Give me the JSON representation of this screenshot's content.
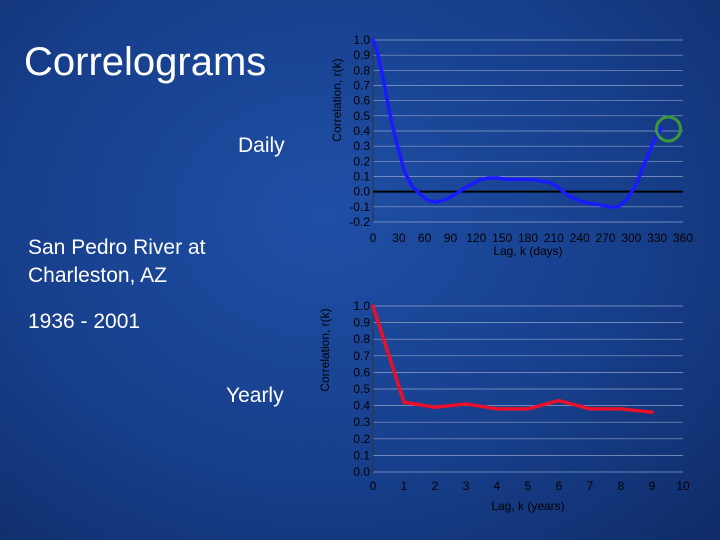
{
  "slide": {
    "title": "Correlograms",
    "daily_label": "Daily",
    "yearly_label": "Yearly",
    "river_line1": "San Pedro River at",
    "river_line2": "Charleston, AZ",
    "years": "1936 - 2001"
  },
  "colors": {
    "daily_series": "#1a1aff",
    "yearly_series": "#e8102a",
    "highlight_circle": "#3a9a3a",
    "axis_text": "#000000"
  },
  "chart_data": [
    {
      "type": "line",
      "ylabel": "Correlation, r(k)",
      "xlabel": "Lag, k (days)",
      "ylim": [
        -0.2,
        1.0
      ],
      "xlim": [
        0,
        360
      ],
      "y_ticks": [
        "1.0",
        "0.9",
        "0.8",
        "0.7",
        "0.6",
        "0.5",
        "0.4",
        "0.3",
        "0.2",
        "0.1",
        "0.0",
        "-0.1",
        "-0.2"
      ],
      "x_ticks": [
        "0",
        "30",
        "60",
        "90",
        "120",
        "150",
        "180",
        "210",
        "240",
        "270",
        "300",
        "330",
        "360"
      ],
      "zero_line": true,
      "grid": true,
      "series": [
        {
          "x": [
            0,
            6,
            12,
            18,
            24,
            30,
            36,
            45,
            55,
            65,
            75,
            85,
            95,
            105,
            115,
            125,
            135,
            145,
            155,
            165,
            175,
            185,
            195,
            205,
            215,
            225,
            235,
            245,
            255,
            265,
            275,
            285,
            295,
            305,
            315,
            325,
            335
          ],
          "y": [
            1.0,
            0.9,
            0.74,
            0.56,
            0.4,
            0.27,
            0.14,
            0.04,
            -0.02,
            -0.06,
            -0.07,
            -0.05,
            -0.02,
            0.02,
            0.05,
            0.08,
            0.09,
            0.09,
            0.08,
            0.08,
            0.08,
            0.08,
            0.07,
            0.06,
            0.03,
            -0.02,
            -0.05,
            -0.07,
            -0.08,
            -0.09,
            -0.1,
            -0.1,
            -0.05,
            0.04,
            0.18,
            0.32,
            0.42
          ]
        }
      ],
      "annotation": "green circle at end of series"
    },
    {
      "type": "line",
      "ylabel": "Correlation, r(k)",
      "xlabel": "Lag, k (years)",
      "ylim": [
        0.0,
        1.0
      ],
      "xlim": [
        0,
        10
      ],
      "y_ticks": [
        "1.0",
        "0.9",
        "0.8",
        "0.7",
        "0.6",
        "0.5",
        "0.4",
        "0.3",
        "0.2",
        "0.1",
        "0.0"
      ],
      "x_ticks": [
        "0",
        "1",
        "2",
        "3",
        "4",
        "5",
        "6",
        "7",
        "8",
        "9",
        "10"
      ],
      "grid": true,
      "series": [
        {
          "x": [
            0,
            1,
            2,
            3,
            4,
            5,
            6,
            7,
            8,
            9
          ],
          "y": [
            1.0,
            0.42,
            0.39,
            0.41,
            0.38,
            0.38,
            0.43,
            0.38,
            0.38,
            0.36
          ]
        }
      ]
    }
  ]
}
